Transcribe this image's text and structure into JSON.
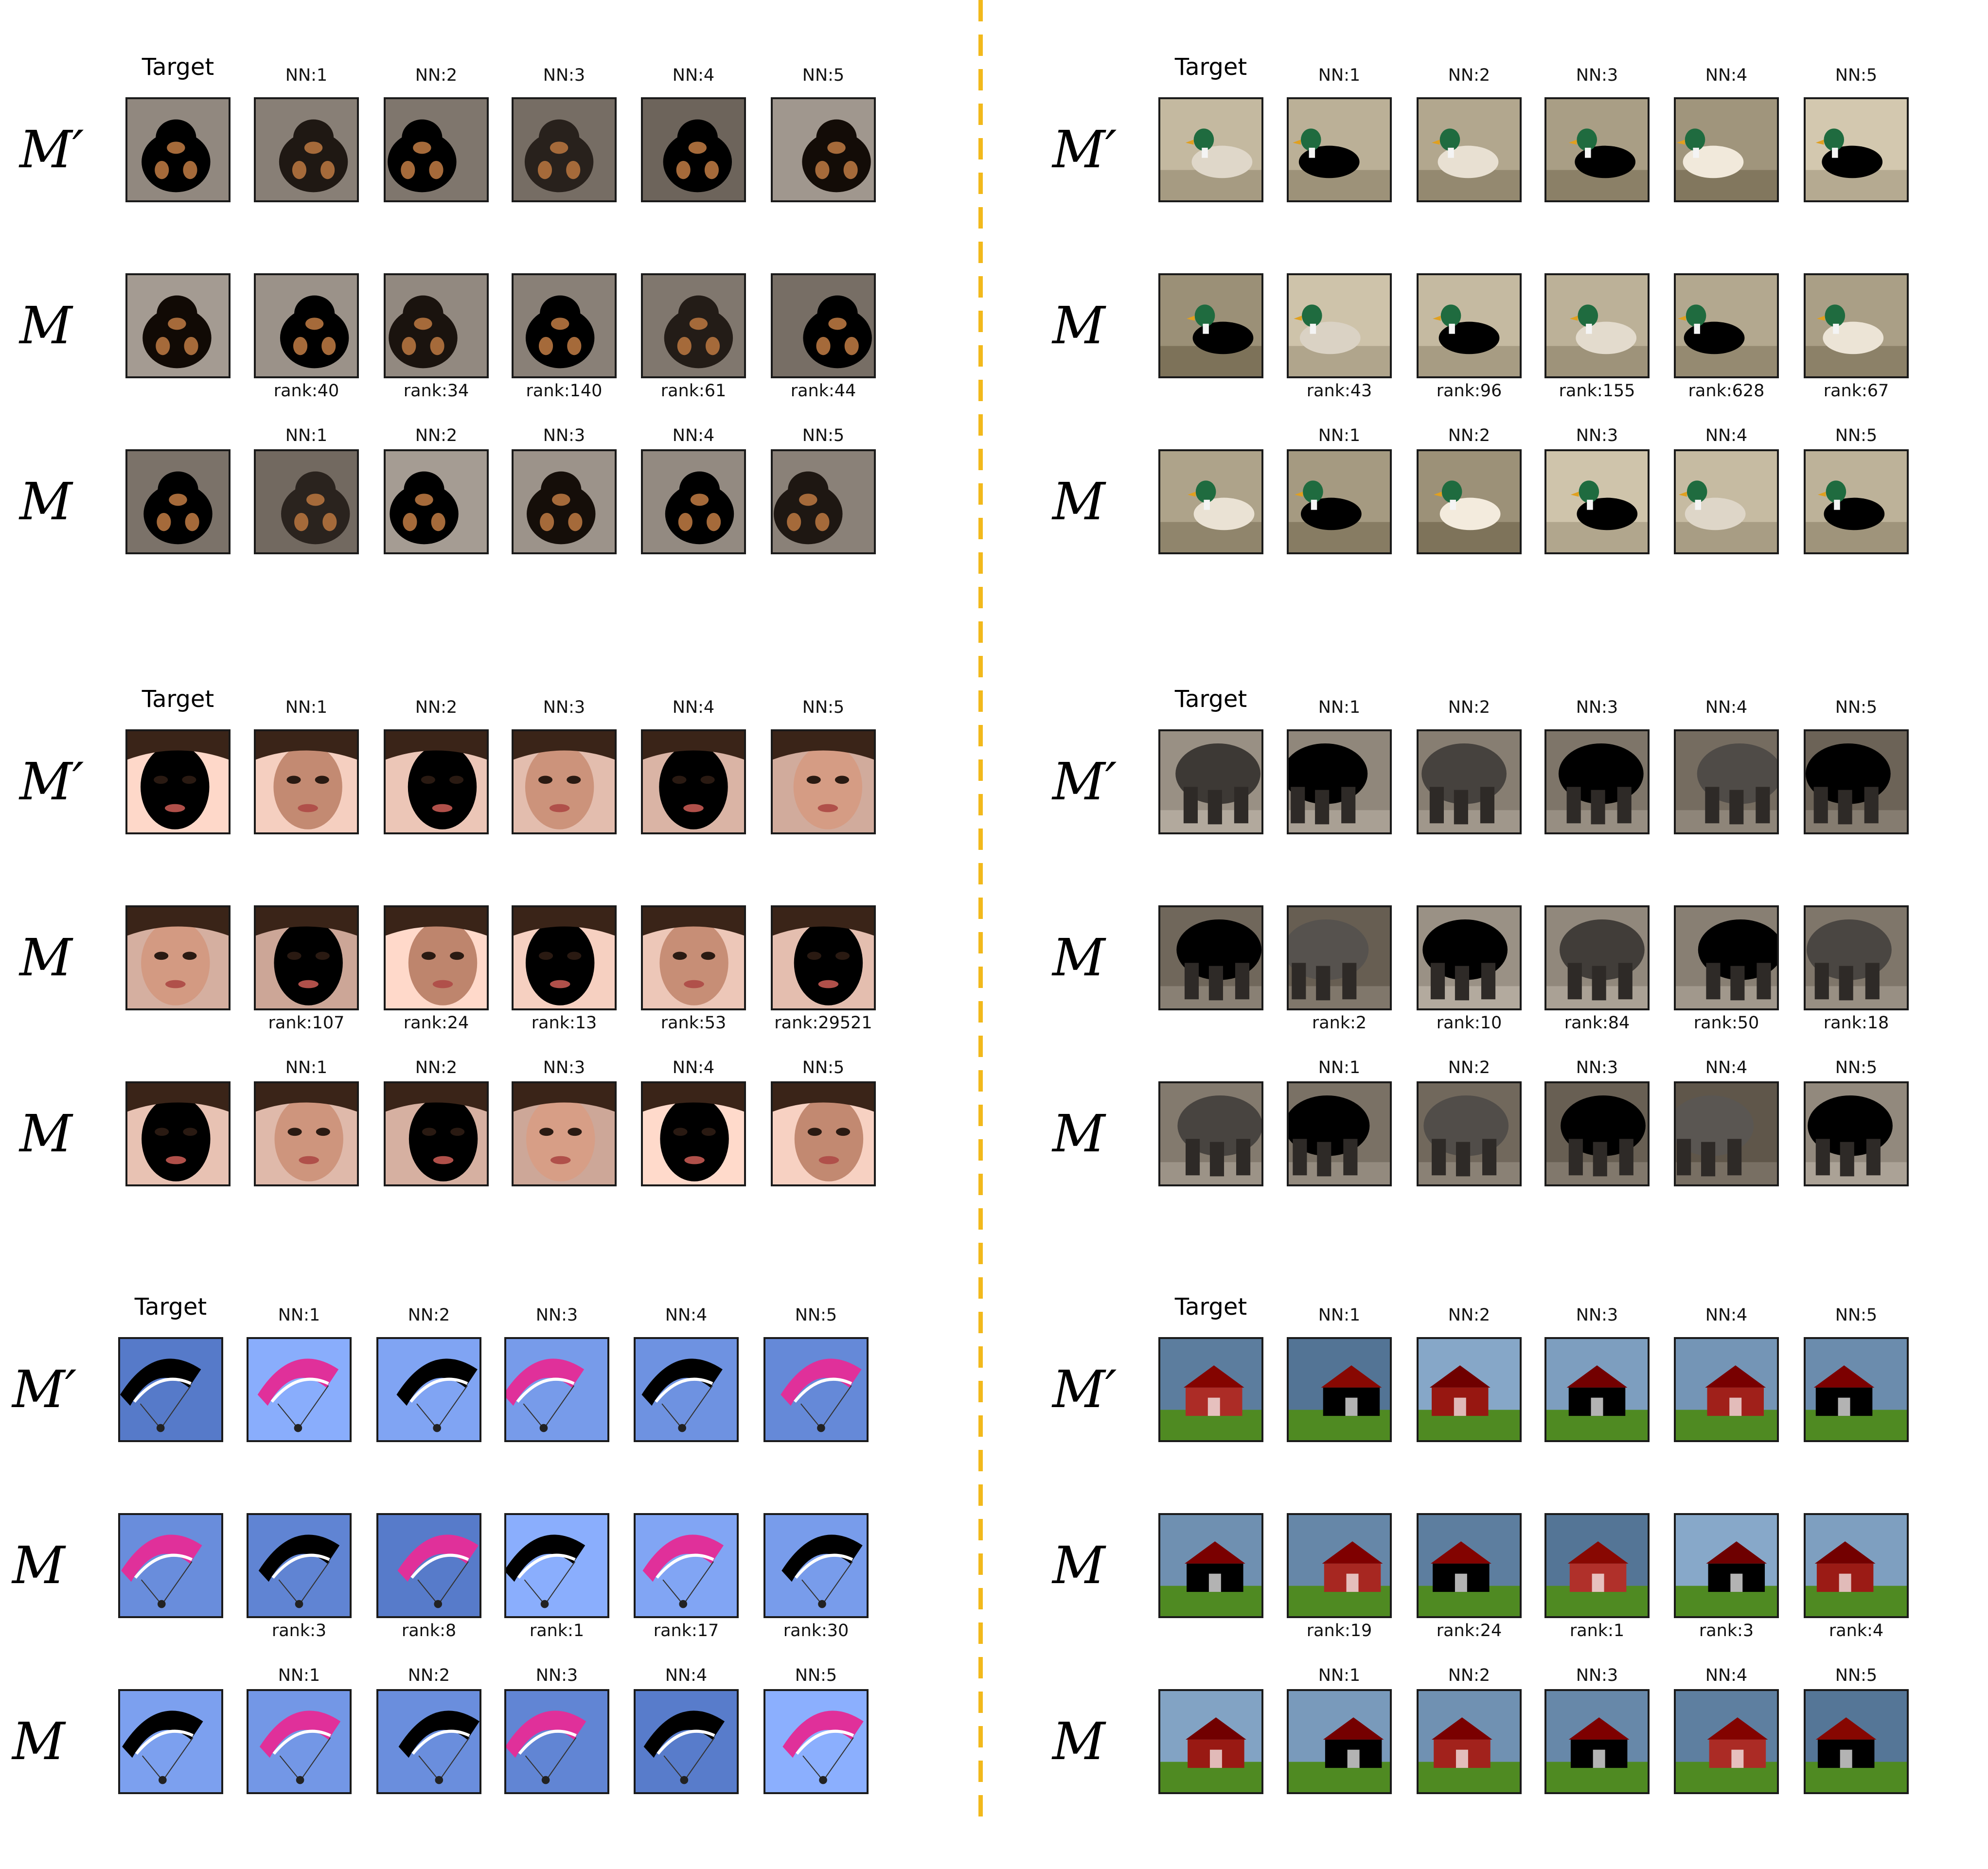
{
  "figure": {
    "row_labels": [
      "M′",
      "M",
      "M"
    ],
    "target_label": "Target",
    "panels": [
      {
        "subject": "rottweiler-dog",
        "palette": {
          "bg": "#8a8178",
          "fg": "#1e1712",
          "accent": "#a56a3a"
        },
        "nn_row1": [
          "NN:1",
          "NN:2",
          "NN:3",
          "NN:4",
          "NN:5"
        ],
        "rank_row2": [
          "rank:40",
          "rank:34",
          "rank:140",
          "rank:61",
          "rank:44"
        ],
        "nn_row3": [
          "NN:1",
          "NN:2",
          "NN:3",
          "NN:4",
          "NN:5"
        ]
      },
      {
        "subject": "mallard-duck",
        "palette": {
          "bg": "#b6ab92",
          "fg": "#e6ded0",
          "accent": "#1f6b3f"
        },
        "nn_row1": [
          "NN:1",
          "NN:2",
          "NN:3",
          "NN:4",
          "NN:5"
        ],
        "rank_row2": [
          "rank:43",
          "rank:96",
          "rank:155",
          "rank:628",
          "rank:67"
        ],
        "nn_row3": [
          "NN:1",
          "NN:2",
          "NN:3",
          "NN:4",
          "NN:5"
        ]
      },
      {
        "subject": "human-face",
        "palette": {
          "bg": "#e9c3b4",
          "fg": "#c99078",
          "accent": "#3a2418"
        },
        "nn_row1": [
          "NN:1",
          "NN:2",
          "NN:3",
          "NN:4",
          "NN:5"
        ],
        "rank_row2": [
          "rank:107",
          "rank:24",
          "rank:13",
          "rank:53",
          "rank:29521"
        ],
        "nn_row3": [
          "NN:1",
          "NN:2",
          "NN:3",
          "NN:4",
          "NN:5"
        ]
      },
      {
        "subject": "elephant",
        "palette": {
          "bg": "#7d7468",
          "fg": "#4b4743",
          "accent": "#2e2a27"
        },
        "nn_row1": [
          "NN:1",
          "NN:2",
          "NN:3",
          "NN:4",
          "NN:5"
        ],
        "rank_row2": [
          "rank:2",
          "rank:10",
          "rank:84",
          "rank:50",
          "rank:18"
        ],
        "nn_row3": [
          "NN:1",
          "NN:2",
          "NN:3",
          "NN:4",
          "NN:5"
        ]
      },
      {
        "subject": "parachute",
        "palette": {
          "bg": "#6f93e2",
          "fg": "#f2c21a",
          "accent": "#e0309a"
        },
        "nn_row1": [
          "NN:1",
          "NN:2",
          "NN:3",
          "NN:4",
          "NN:5"
        ],
        "rank_row2": [
          "rank:3",
          "rank:8",
          "rank:1",
          "rank:17",
          "rank:30"
        ],
        "nn_row3": [
          "NN:1",
          "NN:2",
          "NN:3",
          "NN:4",
          "NN:5"
        ]
      },
      {
        "subject": "red-barn",
        "palette": {
          "bg": "#6e8fb0",
          "fg": "#a3231d",
          "accent": "#4f8a22"
        },
        "nn_row1": [
          "NN:1",
          "NN:2",
          "NN:3",
          "NN:4",
          "NN:5"
        ],
        "rank_row2": [
          "rank:19",
          "rank:24",
          "rank:1",
          "rank:3",
          "rank:4"
        ],
        "nn_row3": [
          "NN:1",
          "NN:2",
          "NN:3",
          "NN:4",
          "NN:5"
        ]
      }
    ]
  }
}
